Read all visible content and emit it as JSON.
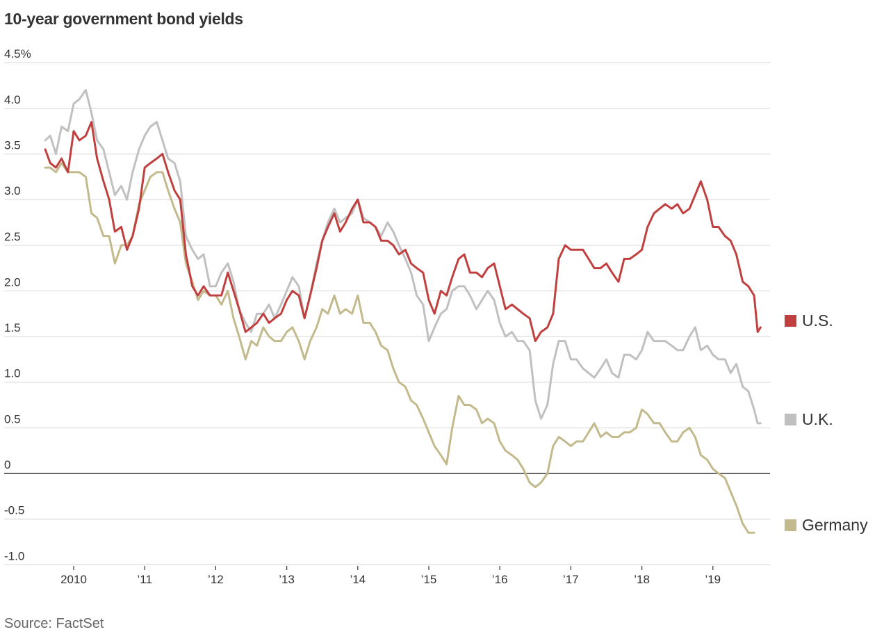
{
  "chart_data": {
    "type": "line",
    "title": "10-year government bond yields",
    "source": "Source: FactSet",
    "xlabel": "",
    "ylabel": "",
    "ylim": [
      -1.0,
      4.5
    ],
    "xlim": [
      2009.6,
      2019.67
    ],
    "grid": true,
    "legend_placement": "right, at line ends",
    "yticks": [
      {
        "value": 4.5,
        "label": "4.5%"
      },
      {
        "value": 4.0,
        "label": "4.0"
      },
      {
        "value": 3.5,
        "label": "3.5"
      },
      {
        "value": 3.0,
        "label": "3.0"
      },
      {
        "value": 2.5,
        "label": "2.5"
      },
      {
        "value": 2.0,
        "label": "2.0"
      },
      {
        "value": 1.5,
        "label": "1.5"
      },
      {
        "value": 1.0,
        "label": "1.0"
      },
      {
        "value": 0.5,
        "label": "0.5"
      },
      {
        "value": 0,
        "label": "0"
      },
      {
        "value": -0.5,
        "label": "-0.5"
      },
      {
        "value": -1.0,
        "label": "-1.0"
      }
    ],
    "xticks": [
      {
        "value": 2010,
        "label": "2010"
      },
      {
        "value": 2011,
        "label": "’11"
      },
      {
        "value": 2012,
        "label": "’12"
      },
      {
        "value": 2013,
        "label": "’13"
      },
      {
        "value": 2014,
        "label": "’14"
      },
      {
        "value": 2015,
        "label": "’15"
      },
      {
        "value": 2016,
        "label": "’16"
      },
      {
        "value": 2017,
        "label": "’17"
      },
      {
        "value": 2018,
        "label": "’18"
      },
      {
        "value": 2019,
        "label": "’19"
      }
    ],
    "x": [
      2009.6,
      2009.67,
      2009.75,
      2009.83,
      2009.92,
      2010.0,
      2010.08,
      2010.17,
      2010.25,
      2010.33,
      2010.42,
      2010.5,
      2010.58,
      2010.67,
      2010.75,
      2010.83,
      2010.92,
      2011.0,
      2011.08,
      2011.17,
      2011.25,
      2011.33,
      2011.42,
      2011.5,
      2011.58,
      2011.67,
      2011.75,
      2011.83,
      2011.92,
      2012.0,
      2012.08,
      2012.17,
      2012.25,
      2012.33,
      2012.42,
      2012.5,
      2012.58,
      2012.67,
      2012.75,
      2012.83,
      2012.92,
      2013.0,
      2013.08,
      2013.17,
      2013.25,
      2013.33,
      2013.42,
      2013.5,
      2013.58,
      2013.67,
      2013.75,
      2013.83,
      2013.92,
      2014.0,
      2014.08,
      2014.17,
      2014.25,
      2014.33,
      2014.42,
      2014.5,
      2014.58,
      2014.67,
      2014.75,
      2014.83,
      2014.92,
      2015.0,
      2015.08,
      2015.17,
      2015.25,
      2015.33,
      2015.42,
      2015.5,
      2015.58,
      2015.67,
      2015.75,
      2015.83,
      2015.92,
      2016.0,
      2016.08,
      2016.17,
      2016.25,
      2016.33,
      2016.42,
      2016.5,
      2016.58,
      2016.67,
      2016.75,
      2016.83,
      2016.92,
      2017.0,
      2017.08,
      2017.17,
      2017.25,
      2017.33,
      2017.42,
      2017.5,
      2017.58,
      2017.67,
      2017.75,
      2017.83,
      2017.92,
      2018.0,
      2018.08,
      2018.17,
      2018.25,
      2018.33,
      2018.42,
      2018.5,
      2018.58,
      2018.67,
      2018.75,
      2018.83,
      2018.92,
      2019.0,
      2019.08,
      2019.17,
      2019.25,
      2019.33,
      2019.42,
      2019.5,
      2019.58,
      2019.63,
      2019.67
    ],
    "series": [
      {
        "name": "U.S.",
        "color": "#c0403f",
        "values": [
          3.55,
          3.4,
          3.35,
          3.45,
          3.3,
          3.75,
          3.65,
          3.7,
          3.85,
          3.45,
          3.2,
          3.0,
          2.65,
          2.7,
          2.45,
          2.6,
          2.9,
          3.35,
          3.4,
          3.45,
          3.5,
          3.3,
          3.1,
          3.0,
          2.4,
          2.05,
          1.95,
          2.05,
          1.95,
          1.95,
          1.95,
          2.2,
          2.0,
          1.8,
          1.55,
          1.6,
          1.65,
          1.75,
          1.65,
          1.7,
          1.75,
          1.9,
          2.0,
          1.95,
          1.7,
          1.95,
          2.25,
          2.55,
          2.7,
          2.85,
          2.65,
          2.75,
          2.9,
          3.0,
          2.75,
          2.75,
          2.7,
          2.55,
          2.55,
          2.5,
          2.4,
          2.45,
          2.3,
          2.25,
          2.2,
          1.9,
          1.75,
          2.0,
          1.95,
          2.15,
          2.35,
          2.4,
          2.2,
          2.2,
          2.15,
          2.25,
          2.3,
          2.05,
          1.8,
          1.85,
          1.8,
          1.75,
          1.7,
          1.45,
          1.55,
          1.6,
          1.75,
          2.35,
          2.5,
          2.45,
          2.45,
          2.45,
          2.35,
          2.25,
          2.25,
          2.3,
          2.2,
          2.1,
          2.35,
          2.35,
          2.4,
          2.45,
          2.7,
          2.85,
          2.9,
          2.95,
          2.9,
          2.95,
          2.85,
          2.9,
          3.05,
          3.2,
          3.0,
          2.7,
          2.7,
          2.6,
          2.55,
          2.4,
          2.1,
          2.05,
          1.95,
          1.55,
          1.6
        ]
      },
      {
        "name": "U.K.",
        "color": "#c0c0c0",
        "values": [
          3.65,
          3.7,
          3.5,
          3.8,
          3.75,
          4.05,
          4.1,
          4.2,
          3.95,
          3.65,
          3.55,
          3.3,
          3.05,
          3.15,
          3.0,
          3.3,
          3.55,
          3.7,
          3.8,
          3.85,
          3.65,
          3.45,
          3.4,
          3.2,
          2.6,
          2.45,
          2.35,
          2.4,
          2.05,
          2.05,
          2.2,
          2.3,
          2.1,
          1.8,
          1.65,
          1.55,
          1.75,
          1.75,
          1.85,
          1.7,
          1.85,
          2.0,
          2.15,
          2.05,
          1.7,
          1.95,
          2.3,
          2.55,
          2.75,
          2.9,
          2.75,
          2.8,
          2.85,
          3.0,
          2.8,
          2.75,
          2.7,
          2.6,
          2.75,
          2.65,
          2.5,
          2.35,
          2.2,
          1.95,
          1.85,
          1.45,
          1.6,
          1.75,
          1.8,
          2.0,
          2.05,
          2.05,
          1.95,
          1.8,
          1.9,
          2.0,
          1.9,
          1.65,
          1.5,
          1.55,
          1.45,
          1.45,
          1.35,
          0.8,
          0.6,
          0.75,
          1.2,
          1.45,
          1.45,
          1.25,
          1.25,
          1.15,
          1.1,
          1.05,
          1.15,
          1.25,
          1.1,
          1.05,
          1.3,
          1.3,
          1.25,
          1.35,
          1.55,
          1.45,
          1.45,
          1.45,
          1.4,
          1.35,
          1.35,
          1.5,
          1.6,
          1.35,
          1.4,
          1.3,
          1.25,
          1.25,
          1.1,
          1.2,
          0.95,
          0.9,
          0.7,
          0.55,
          0.55
        ]
      },
      {
        "name": "Germany",
        "color": "#c2ba8c",
        "values": [
          3.35,
          3.35,
          3.3,
          3.4,
          3.3,
          3.3,
          3.3,
          3.25,
          2.85,
          2.8,
          2.6,
          2.6,
          2.3,
          2.5,
          2.5,
          2.6,
          2.95,
          3.1,
          3.25,
          3.3,
          3.3,
          3.1,
          2.9,
          2.75,
          2.3,
          2.1,
          1.9,
          2.0,
          1.95,
          1.95,
          1.85,
          2.0,
          1.7,
          1.5,
          1.25,
          1.45,
          1.4,
          1.6,
          1.5,
          1.45,
          1.45,
          1.55,
          1.6,
          1.45,
          1.25,
          1.45,
          1.6,
          1.8,
          1.75,
          1.95,
          1.75,
          1.8,
          1.75,
          1.95,
          1.65,
          1.65,
          1.55,
          1.4,
          1.35,
          1.15,
          1.0,
          0.95,
          0.8,
          0.75,
          0.6,
          0.45,
          0.3,
          0.2,
          0.1,
          0.5,
          0.85,
          0.75,
          0.75,
          0.7,
          0.55,
          0.6,
          0.55,
          0.35,
          0.25,
          0.2,
          0.15,
          0.05,
          -0.1,
          -0.15,
          -0.1,
          0.0,
          0.3,
          0.4,
          0.35,
          0.3,
          0.35,
          0.35,
          0.45,
          0.55,
          0.4,
          0.45,
          0.4,
          0.4,
          0.45,
          0.45,
          0.5,
          0.7,
          0.65,
          0.55,
          0.55,
          0.45,
          0.35,
          0.35,
          0.45,
          0.5,
          0.4,
          0.2,
          0.15,
          0.05,
          0.0,
          -0.05,
          -0.2,
          -0.35,
          -0.55,
          -0.65,
          -0.65
        ]
      }
    ]
  }
}
